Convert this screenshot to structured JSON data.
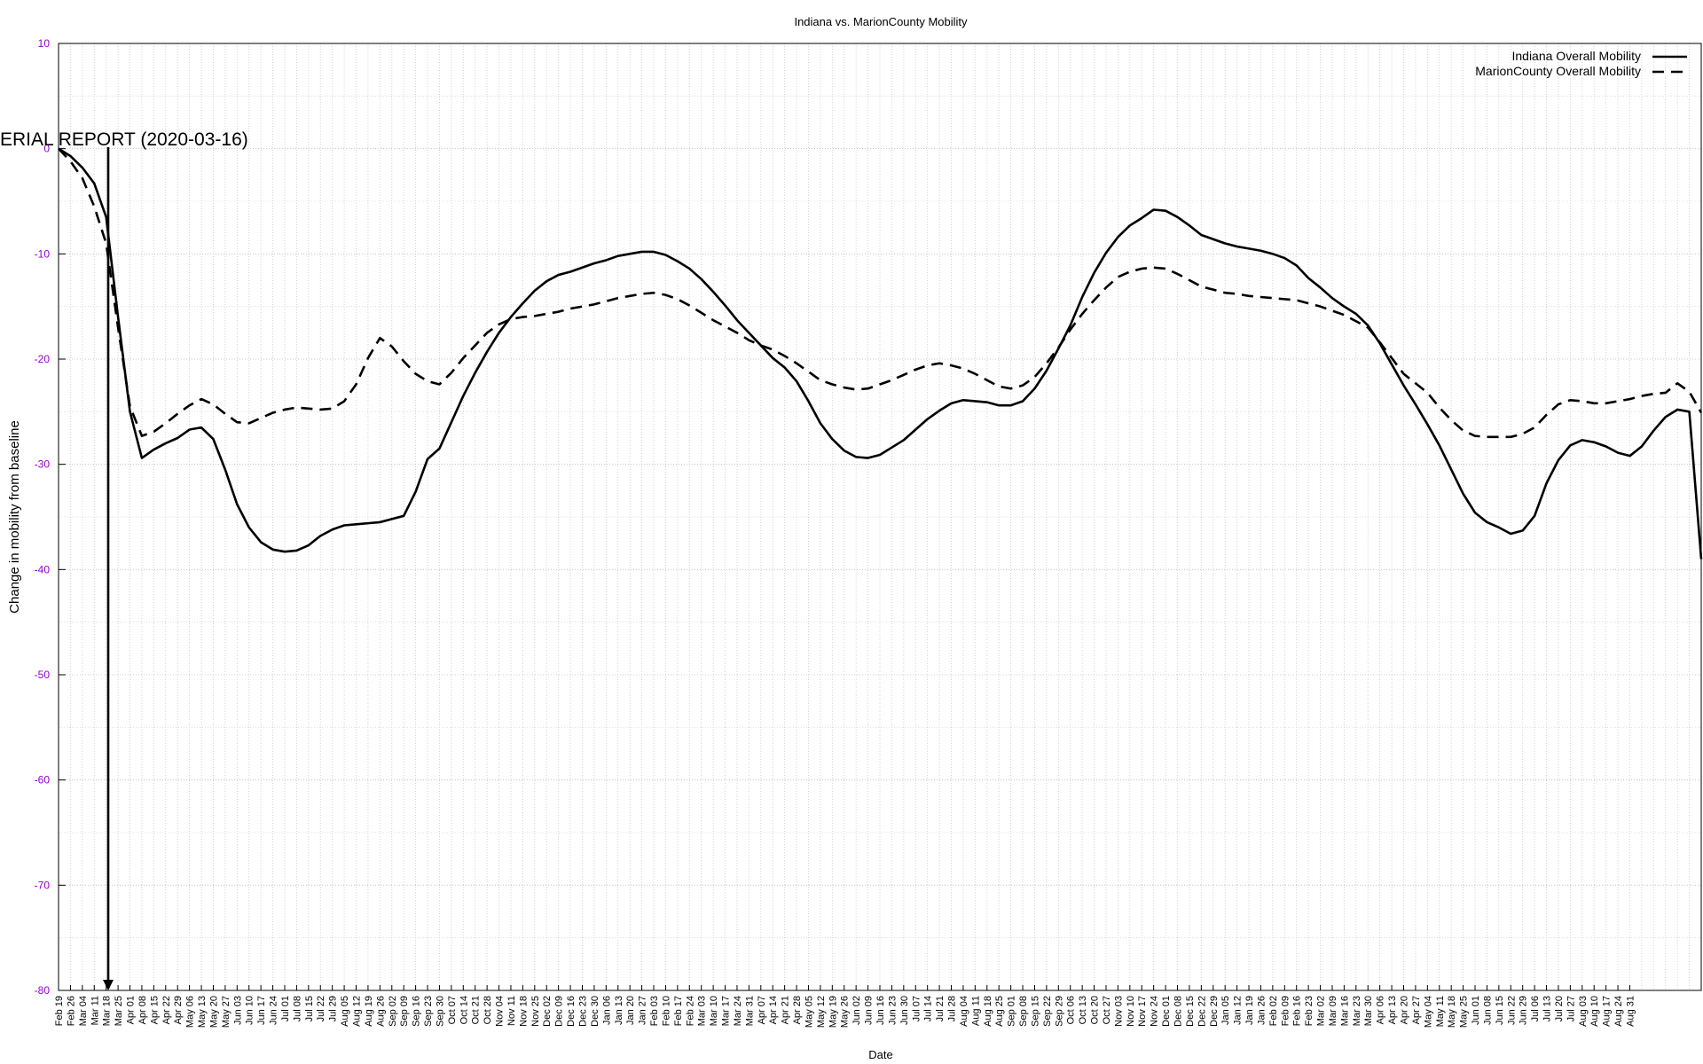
{
  "chart_data": {
    "type": "line",
    "title": "Indiana vs. MarionCounty Mobility",
    "x_label": "Date",
    "y_label": "Change in mobility from baseline",
    "annotation": "ERIAL REPORT (2020-03-16)",
    "categories": [
      "Feb 19",
      "Feb 26",
      "Mar 04",
      "Mar 11",
      "Mar 18",
      "Mar 25",
      "Apr 01",
      "Apr 08",
      "Apr 15",
      "Apr 22",
      "Apr 29",
      "May 06",
      "May 13",
      "May 20",
      "May 27",
      "Jun 03",
      "Jun 10",
      "Jun 17",
      "Jun 24",
      "Jul 01",
      "Jul 08",
      "Jul 15",
      "Jul 22",
      "Jul 29",
      "Aug 05",
      "Aug 12",
      "Aug 19",
      "Aug 26",
      "Sep 02",
      "Sep 09",
      "Sep 16",
      "Sep 23",
      "Sep 30",
      "Oct 07",
      "Oct 14",
      "Oct 21",
      "Oct 28",
      "Nov 04",
      "Nov 11",
      "Nov 18",
      "Nov 25",
      "Dec 02",
      "Dec 09",
      "Dec 16",
      "Dec 23",
      "Dec 30",
      "Jan 06",
      "Jan 13",
      "Jan 20",
      "Jan 27",
      "Feb 03",
      "Feb 10",
      "Feb 17",
      "Feb 24",
      "Mar 03",
      "Mar 10",
      "Mar 17",
      "Mar 24",
      "Mar 31",
      "Apr 07",
      "Apr 14",
      "Apr 21",
      "Apr 28",
      "May 05",
      "May 12",
      "May 19",
      "May 26",
      "Jun 02",
      "Jun 09",
      "Jun 16",
      "Jun 23",
      "Jun 30",
      "Jul 07",
      "Jul 14",
      "Jul 21",
      "Jul 28",
      "Aug 04",
      "Aug 11",
      "Aug 18",
      "Aug 25",
      "Sep 01",
      "Sep 08",
      "Sep 15",
      "Sep 22",
      "Sep 29",
      "Oct 06",
      "Oct 13",
      "Oct 20",
      "Oct 27",
      "Nov 03",
      "Nov 10",
      "Nov 17",
      "Nov 24",
      "Dec 01",
      "Dec 08",
      "Dec 15",
      "Dec 22",
      "Dec 29",
      "Jan 05",
      "Jan 12",
      "Jan 19",
      "Jan 26",
      "Feb 02",
      "Feb 09",
      "Feb 16",
      "Feb 23",
      "Mar 02",
      "Mar 09",
      "Mar 16",
      "Mar 23",
      "Mar 30",
      "Apr 06",
      "Apr 13",
      "Apr 20",
      "Apr 27",
      "May 04",
      "May 11",
      "May 18",
      "May 25",
      "Jun 01",
      "Jun 08",
      "Jun 15",
      "Jun 22",
      "Jun 29",
      "Jul 06",
      "Jul 13",
      "Jul 20",
      "Jul 27",
      "Aug 03",
      "Aug 10",
      "Aug 17",
      "Aug 24",
      "Aug 31",
      null,
      null,
      null,
      null,
      null,
      null
    ],
    "series": [
      {
        "name": "Indiana Overall Mobility",
        "color": "#000000",
        "style": "solid",
        "values": [
          0,
          -0.7,
          -1.8,
          -3.3,
          -6.5,
          -16,
          -25,
          -29.4,
          -28.6,
          -28.0,
          -27.5,
          -26.7,
          -26.5,
          -27.6,
          -30.5,
          -33.8,
          -36.0,
          -37.4,
          -38.1,
          -38.3,
          -38.2,
          -37.7,
          -36.8,
          -36.2,
          -35.8,
          -35.7,
          -35.6,
          -35.5,
          -35.2,
          -34.9,
          -32.6,
          -29.5,
          -28.5,
          -26.0,
          -23.5,
          -21.3,
          -19.3,
          -17.5,
          -16.0,
          -14.7,
          -13.5,
          -12.6,
          -12.0,
          -11.7,
          -11.3,
          -10.9,
          -10.6,
          -10.2,
          -10.0,
          -9.8,
          -9.8,
          -10.1,
          -10.7,
          -11.4,
          -12.4,
          -13.6,
          -14.9,
          -16.3,
          -17.5,
          -18.7,
          -19.9,
          -20.8,
          -22.1,
          -24.0,
          -26.1,
          -27.6,
          -28.7,
          -29.3,
          -29.4,
          -29.1,
          -28.4,
          -27.7,
          -26.7,
          -25.7,
          -24.9,
          -24.2,
          -23.9,
          -24.0,
          -24.1,
          -24.4,
          -24.4,
          -24.0,
          -22.8,
          -21.1,
          -19.0,
          -16.8,
          -14.1,
          -11.8,
          -9.9,
          -8.4,
          -7.3,
          -6.6,
          -5.8,
          -5.9,
          -6.5,
          -7.3,
          -8.2,
          -8.6,
          -9.0,
          -9.3,
          -9.5,
          -9.7,
          -10.0,
          -10.4,
          -11.1,
          -12.3,
          -13.2,
          -14.2,
          -15.0,
          -15.7,
          -16.8,
          -18.5,
          -20.5,
          -22.5,
          -24.3,
          -26.2,
          -28.2,
          -30.5,
          -32.8,
          -34.6,
          -35.5,
          -36.0,
          -36.6,
          -36.3,
          -34.9,
          -31.8,
          -29.6,
          -28.2,
          -27.7,
          -27.9,
          -28.3,
          -28.9,
          -29.2,
          -28.3,
          -26.8,
          -25.5,
          -24.8,
          -25.0,
          -39.0
        ]
      },
      {
        "name": "MarionCounty Overall Mobility",
        "color": "#000000",
        "style": "dashed",
        "values": [
          0,
          -1.2,
          -2.8,
          -5.5,
          -9,
          -17,
          -24.5,
          -27.3,
          -26.9,
          -26.1,
          -25.2,
          -24.4,
          -23.8,
          -24.3,
          -25.2,
          -26.0,
          -26.1,
          -25.6,
          -25.1,
          -24.8,
          -24.6,
          -24.7,
          -24.8,
          -24.7,
          -24.0,
          -22.4,
          -19.9,
          -18.0,
          -18.8,
          -20.2,
          -21.4,
          -22.1,
          -22.4,
          -21.3,
          -19.9,
          -18.7,
          -17.5,
          -16.7,
          -16.2,
          -16.0,
          -15.9,
          -15.7,
          -15.5,
          -15.2,
          -15.0,
          -14.8,
          -14.5,
          -14.2,
          -14.0,
          -13.8,
          -13.7,
          -13.9,
          -14.3,
          -14.9,
          -15.6,
          -16.3,
          -16.9,
          -17.5,
          -18.2,
          -18.7,
          -19.1,
          -19.7,
          -20.4,
          -21.2,
          -22.0,
          -22.4,
          -22.7,
          -22.9,
          -22.8,
          -22.4,
          -22.0,
          -21.5,
          -21.0,
          -20.6,
          -20.4,
          -20.6,
          -20.9,
          -21.4,
          -22.0,
          -22.6,
          -22.8,
          -22.5,
          -21.7,
          -20.4,
          -18.9,
          -17.2,
          -15.7,
          -14.4,
          -13.2,
          -12.2,
          -11.7,
          -11.4,
          -11.3,
          -11.4,
          -11.9,
          -12.5,
          -13.1,
          -13.4,
          -13.7,
          -13.8,
          -14.0,
          -14.1,
          -14.2,
          -14.3,
          -14.4,
          -14.7,
          -15.0,
          -15.4,
          -15.8,
          -16.4,
          -17.0,
          -18.4,
          -19.9,
          -21.4,
          -22.3,
          -23.2,
          -24.6,
          -25.8,
          -26.8,
          -27.3,
          -27.4,
          -27.4,
          -27.4,
          -27.1,
          -26.5,
          -25.3,
          -24.3,
          -23.9,
          -24.0,
          -24.2,
          -24.2,
          -24.0,
          -23.8,
          -23.5,
          -23.3,
          -23.2,
          -22.3,
          -23.1,
          -25.1
        ]
      }
    ],
    "ylim": [
      -80,
      10
    ],
    "yticks": [
      -80,
      -70,
      -60,
      -50,
      -40,
      -30,
      -20,
      -10,
      0,
      10
    ],
    "ytick_color": "#9400d3",
    "grid": true,
    "legend": "top-right"
  }
}
